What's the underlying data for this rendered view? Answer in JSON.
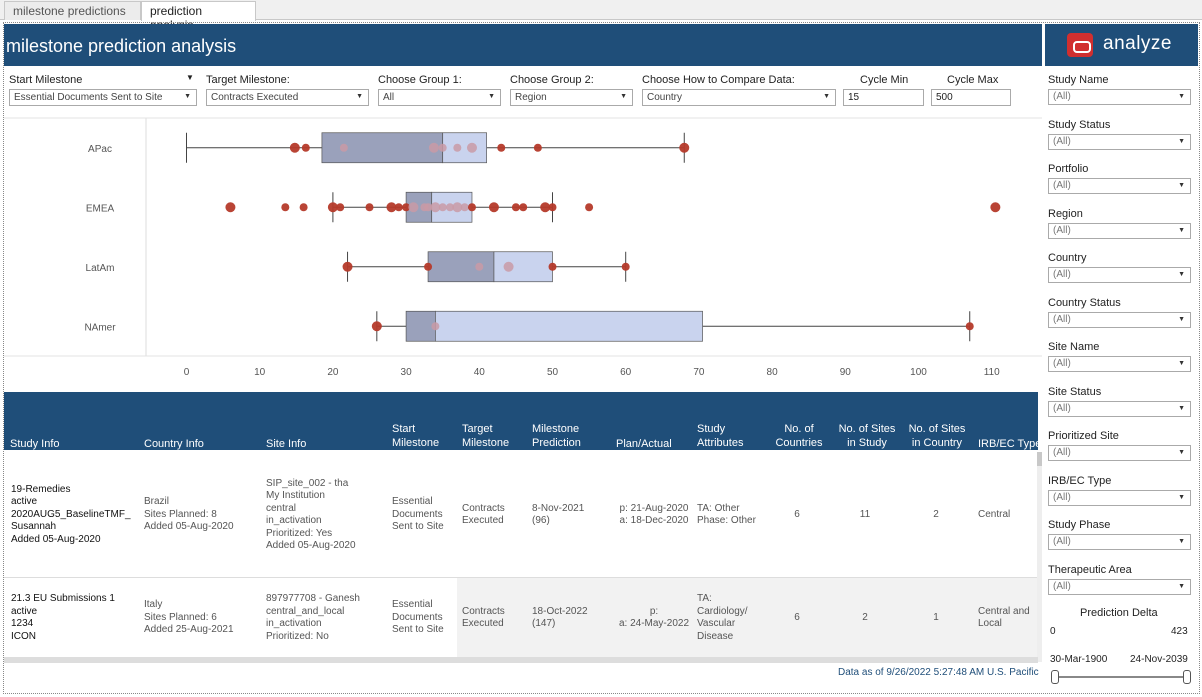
{
  "tabs": [
    {
      "label": "milestone predictions",
      "active": false
    },
    {
      "label": "prediction analysis",
      "active": true
    }
  ],
  "header": {
    "title": "milestone prediction analysis"
  },
  "logo": {
    "text": "analyze",
    "icon": "oracle-logo-icon"
  },
  "controls": {
    "start_milestone": {
      "label": "Start Milestone",
      "value": "Essential Documents Sent to Site"
    },
    "target_milestone": {
      "label": "Target Milestone:",
      "value": "Contracts Executed"
    },
    "group1": {
      "label": "Choose Group 1:",
      "value": "All"
    },
    "group2": {
      "label": "Choose Group 2:",
      "value": "Region"
    },
    "compare": {
      "label": "Choose How to Compare Data:",
      "value": "Country"
    },
    "cycle_min": {
      "label": "Cycle Min",
      "value": "15"
    },
    "cycle_max": {
      "label": "Cycle Max",
      "value": "500"
    }
  },
  "chart_data": {
    "type": "box",
    "categories": [
      "APac",
      "EMEA",
      "LatAm",
      "NAmer"
    ],
    "xlim": [
      -5,
      115
    ],
    "xticks": [
      0,
      10,
      20,
      30,
      40,
      50,
      60,
      70,
      80,
      90,
      100,
      110
    ],
    "colors": {
      "box_lower": "#9aa1bb",
      "box_upper": "#c9d3ee",
      "point": "#b53a2a",
      "point_light": "#c99aa6"
    },
    "boxes": [
      {
        "category": "APac",
        "whisker_low": 0,
        "q1": 18.5,
        "median": 35,
        "q3": 41,
        "whisker_high": 68
      },
      {
        "category": "EMEA",
        "whisker_low": 20,
        "q1": 30,
        "median": 33.5,
        "q3": 39,
        "whisker_high": 50
      },
      {
        "category": "LatAm",
        "whisker_low": 22,
        "q1": 33,
        "median": 42,
        "q3": 50,
        "whisker_high": 60
      },
      {
        "category": "NAmer",
        "whisker_low": 26,
        "q1": 30,
        "median": 34,
        "q3": 70.5,
        "whisker_high": 107
      }
    ],
    "points": [
      {
        "category": "APac",
        "values": [
          14.8,
          16.3,
          21.5,
          33.8,
          35,
          37,
          39,
          43,
          48,
          68
        ]
      },
      {
        "category": "EMEA",
        "values": [
          6,
          13.5,
          16,
          20,
          21,
          25,
          28,
          29,
          30,
          31,
          32.5,
          33,
          34,
          35,
          36,
          37,
          38,
          39,
          42,
          45,
          46,
          49,
          50,
          55,
          110.5
        ]
      },
      {
        "category": "LatAm",
        "values": [
          22,
          33,
          40,
          44,
          50,
          60
        ]
      },
      {
        "category": "NAmer",
        "values": [
          26,
          34,
          107
        ]
      }
    ]
  },
  "table": {
    "headers": [
      "Study Info",
      "Country Info",
      "Site Info",
      "Start Milestone",
      "Target Milestone",
      "Milestone Prediction",
      "Plan/Actual",
      "Study Attributes",
      "No. of Countries",
      "No. of Sites in Study",
      "No. of Sites in Country",
      "IRB/EC Type"
    ],
    "rows": [
      {
        "study_info": [
          "19-Remedies",
          "active",
          "2020AUG5_BaselineTMF_",
          "Susannah",
          "Added 05-Aug-2020"
        ],
        "country_info": [
          "Brazil",
          "Sites Planned: 8",
          "Added 05-Aug-2020"
        ],
        "site_info": [
          "SIP_site_002 - tha",
          "My Institution",
          "central",
          "in_activation",
          "Prioritized: Yes",
          "Added 05-Aug-2020"
        ],
        "start_milestone": [
          "Essential",
          "Documents",
          "Sent to Site"
        ],
        "target_milestone": [
          "Contracts",
          "Executed"
        ],
        "prediction": [
          "8-Nov-2021",
          "(96)"
        ],
        "plan_actual": [
          "p: 21-Aug-2020",
          "a: 18-Dec-2020"
        ],
        "attributes": [
          "TA: Other",
          "Phase: Other"
        ],
        "countries": "6",
        "sites_study": "11",
        "sites_country": "2",
        "irb": [
          "Central"
        ]
      },
      {
        "study_info": [
          "21.3 EU Submissions 1",
          "active",
          "1234",
          "ICON"
        ],
        "country_info": [
          "Italy",
          "Sites Planned: 6",
          "Added 25-Aug-2021"
        ],
        "site_info": [
          "897977708 - Ganesh",
          "central_and_local",
          "in_activation",
          "Prioritized: No"
        ],
        "start_milestone": [
          "Essential",
          "Documents",
          "Sent to Site"
        ],
        "target_milestone": [
          "Contracts",
          "Executed"
        ],
        "prediction": [
          "18-Oct-2022",
          "(147)"
        ],
        "plan_actual": [
          "p:",
          "a: 24-May-2022"
        ],
        "attributes": [
          "TA:",
          "Cardiology/",
          "Vascular",
          "Disease"
        ],
        "countries": "6",
        "sites_study": "2",
        "sites_country": "1",
        "irb": [
          "Central and",
          "Local"
        ]
      }
    ]
  },
  "footer": {
    "text": "Data as of 9/26/2022 5:27:48 AM U.S. Pacific"
  },
  "filters": [
    {
      "label": "Study Name",
      "value": "(All)"
    },
    {
      "label": "Study Status",
      "value": "(All)"
    },
    {
      "label": "Portfolio",
      "value": "(All)"
    },
    {
      "label": "Region",
      "value": "(All)"
    },
    {
      "label": "Country",
      "value": "(All)"
    },
    {
      "label": "Country Status",
      "value": "(All)"
    },
    {
      "label": "Site Name",
      "value": "(All)"
    },
    {
      "label": "Site Status",
      "value": "(All)"
    },
    {
      "label": "Prioritized Site",
      "value": "(All)"
    },
    {
      "label": "IRB/EC Type",
      "value": "(All)"
    },
    {
      "label": "Study Phase",
      "value": "(All)"
    },
    {
      "label": "Therapeutic Area",
      "value": "(All)"
    }
  ],
  "prediction_delta": {
    "label": "Prediction Delta",
    "min": "0",
    "max": "423",
    "date_min": "30-Mar-1900",
    "date_max": "24-Nov-2039"
  }
}
